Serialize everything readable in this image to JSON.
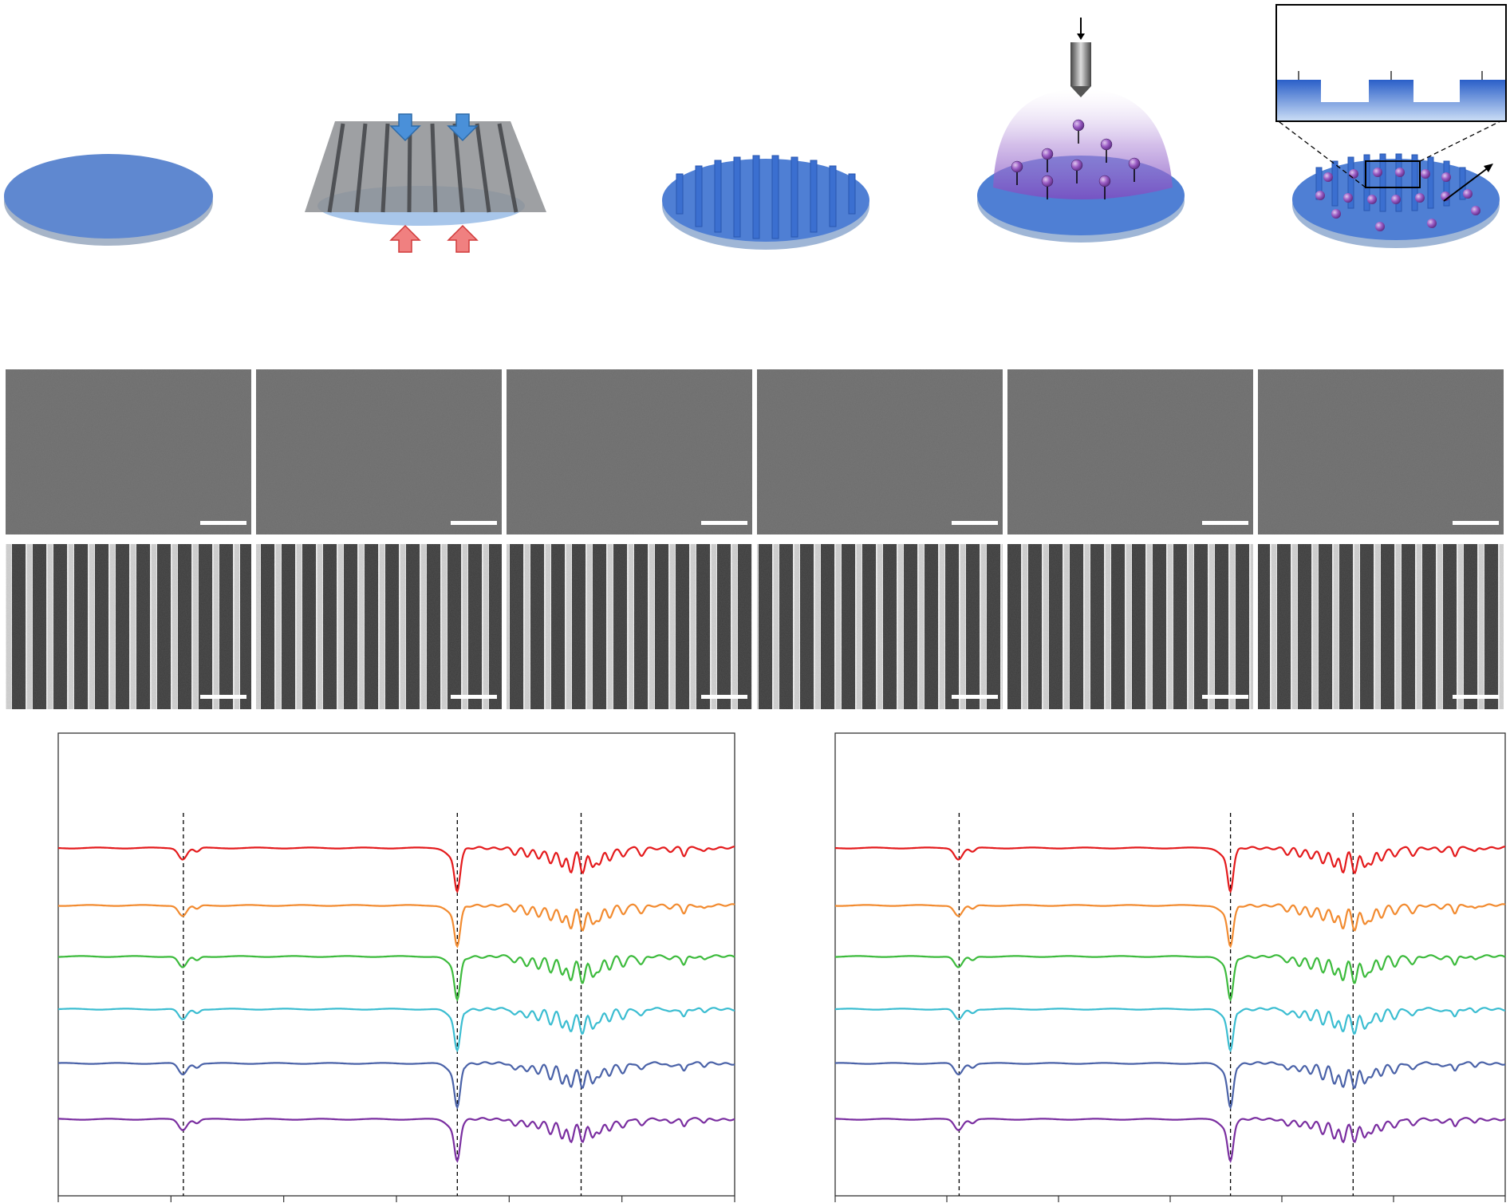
{
  "figure": {
    "schematic_steps": [
      {
        "name": "substrate-disk"
      },
      {
        "name": "imprint-step"
      },
      {
        "name": "grating-disk"
      },
      {
        "name": "plasma-treatment"
      },
      {
        "name": "functionalized-grating"
      }
    ],
    "sem_rows": [
      {
        "name": "flat-films",
        "count": 6
      },
      {
        "name": "grating-films",
        "count": 6
      }
    ],
    "colors": {
      "disk": "#5f88d0",
      "grating": "#3b6fd0",
      "arrow_down": "#4a90d9",
      "arrow_up": "#e24b4b",
      "particle": "#8a4fb0",
      "plasma": "#9a6ac9"
    }
  },
  "chart_data": [
    {
      "type": "line",
      "name": "spectra-left",
      "series": [
        {
          "color": "#e41a1c"
        },
        {
          "color": "#f28b30"
        },
        {
          "color": "#3dbb3d"
        },
        {
          "color": "#3bbdd1"
        },
        {
          "color": "#4a62a8"
        },
        {
          "color": "#7a2ea0"
        }
      ],
      "x_ticks_count": 7,
      "reference_lines_count": 3
    },
    {
      "type": "line",
      "name": "spectra-right",
      "series": [
        {
          "color": "#e41a1c"
        },
        {
          "color": "#f28b30"
        },
        {
          "color": "#3dbb3d"
        },
        {
          "color": "#3bbdd1"
        },
        {
          "color": "#4a62a8"
        },
        {
          "color": "#7a2ea0"
        }
      ],
      "x_ticks_count": 7,
      "reference_lines_count": 3
    }
  ]
}
